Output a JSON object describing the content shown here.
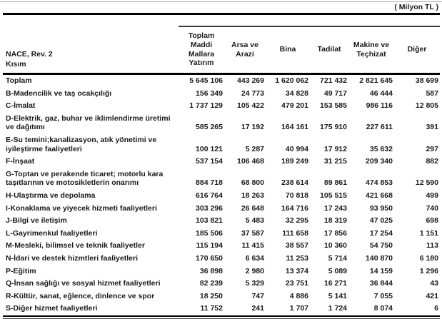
{
  "meta": {
    "unit_label": "( Milyon TL )"
  },
  "table": {
    "row_header": "NACE, Rev. 2\nKısım",
    "columns": [
      "Toplam\nMaddi\nMallara\nYatırım",
      "Arsa ve\nArazi",
      "Bina",
      "Tadilat",
      "Makine ve\nTeçhizat",
      "Diğer"
    ],
    "rows": [
      {
        "label": "Toplam",
        "values": [
          "5 645 106",
          "443 269",
          "1 620 062",
          "721 432",
          "2 821 645",
          "38 699"
        ],
        "emphasis": true
      },
      {
        "label": "B-Madencilik ve taş ocakçılığı",
        "values": [
          "156 349",
          "24 773",
          "34 828",
          "49 717",
          "46 444",
          "587"
        ]
      },
      {
        "label": "C-İmalat",
        "values": [
          "1 737 129",
          "105 422",
          "479 201",
          "153 585",
          "986 116",
          "12 805"
        ]
      },
      {
        "label": "D-Elektrik, gaz, buhar ve iklimlendirme üretimi ve dağıtımı",
        "values": [
          "585 265",
          "17 192",
          "164 161",
          "175 910",
          "227 611",
          "391"
        ]
      },
      {
        "label": "E-Su temini;kanalizasyon, atık yönetimi ve iyileştirme faaliyetleri",
        "values": [
          "100 121",
          "5 287",
          "40 994",
          "17 912",
          "35 632",
          "297"
        ]
      },
      {
        "label": "F-İnşaat",
        "values": [
          "537 154",
          "106 468",
          "189 249",
          "31 215",
          "209 340",
          "882"
        ]
      },
      {
        "label": "G-Toptan ve perakende ticaret; motorlu kara taşıtlarının ve motosikletlerin onarımı",
        "values": [
          "884 718",
          "68 800",
          "238 614",
          "89 861",
          "474 853",
          "12 590"
        ]
      },
      {
        "label": "H-Ulaştırma ve depolama",
        "values": [
          "616 764",
          "18 263",
          "70 818",
          "105 515",
          "421 668",
          "499"
        ]
      },
      {
        "label": "I-Konaklama ve yiyecek hizmeti faaliyetleri",
        "values": [
          "303 296",
          "26 648",
          "164 716",
          "17 243",
          "93 950",
          "740"
        ]
      },
      {
        "label": "J-Bilgi ve iletişim",
        "values": [
          "103 821",
          "5 483",
          "32 295",
          "18 319",
          "47 025",
          "698"
        ]
      },
      {
        "label": "L-Gayrimenkul faaliyetleri",
        "values": [
          "185 506",
          "37 587",
          "111 658",
          "17 856",
          "17 254",
          "1 151"
        ]
      },
      {
        "label": "M-Mesleki, bilimsel ve teknik faaliyetler",
        "values": [
          "115 194",
          "11 415",
          "38 557",
          "10 360",
          "54 750",
          "113"
        ]
      },
      {
        "label": "N-İdari ve destek hizmtleri faaliyetleri",
        "values": [
          "170 650",
          "6 634",
          "11 253",
          "5 714",
          "140 870",
          "6 180"
        ]
      },
      {
        "label": "P-Eğitim",
        "values": [
          "36 898",
          "2 980",
          "13 374",
          "5 089",
          "14 159",
          "1 296"
        ]
      },
      {
        "label": "Q-İnsan sağlığı ve sosyal hizmet faaliyetleri",
        "values": [
          "82 239",
          "5 329",
          "23 751",
          "16 271",
          "36 844",
          "43"
        ]
      },
      {
        "label": "R-Kültür, sanat, eğlence, dinlence ve spor",
        "values": [
          "18 250",
          "747",
          "4 886",
          "5 141",
          "7 055",
          "421"
        ]
      },
      {
        "label": "S-Diğer hizmet faaliyetleri",
        "values": [
          "11 752",
          "241",
          "1 707",
          "1 724",
          "8 074",
          "6"
        ]
      }
    ]
  }
}
